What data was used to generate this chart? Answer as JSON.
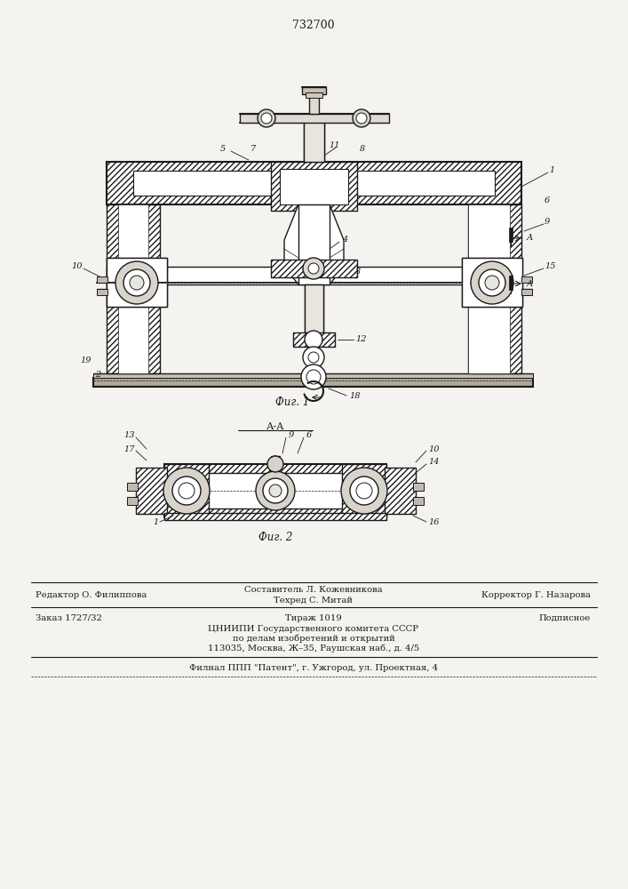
{
  "patent_number": "732700",
  "bg_color": "#f5f3ef",
  "drawing_color": "#1a1a1a",
  "fig1_label": "Фиг. 1",
  "fig2_label": "Фиг. 2",
  "section_label": "А-А",
  "footer_line1_left": "Редактор О. Филиппова",
  "footer_line1_center_top": "Составитель Л. Кожевникова",
  "footer_line1_center_bot": "Техред С. Митай",
  "footer_line1_right": "Корректор Г. Назарова",
  "footer_line2_left": "Заказ 1727/32",
  "footer_line2_center": "Тираж 1019",
  "footer_line2_right": "Подписное",
  "footer_line3": "ЦНИИПИ Государственного комитета СССР",
  "footer_line4": "по делам изобретений и открытий",
  "footer_line5": "113035, Москва, Ж–35, Раушская наб., д. 4/5",
  "footer_line6": "Филнал ППП \"Патент\", г. Ужгород, ул. Проектная, 4"
}
